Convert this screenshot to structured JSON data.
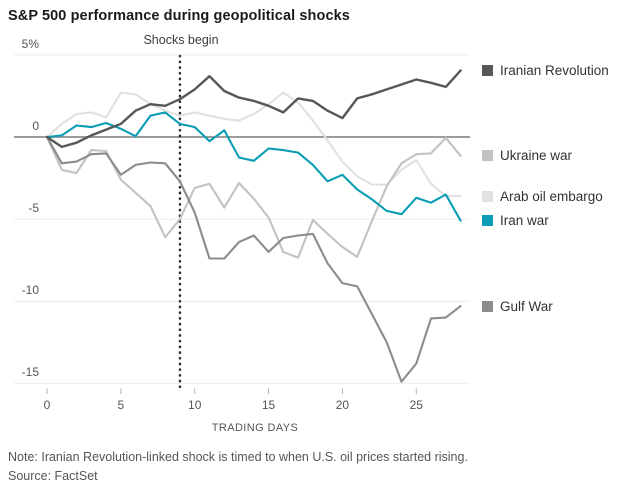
{
  "title": "S&P 500 performance during geopolitical shocks",
  "annotation": "Shocks begin",
  "xlabel": "TRADING DAYS",
  "note": "Note: Iranian Revolution-linked shock is timed to when U.S. oil prices started rising.",
  "source": "Source: FactSet",
  "chart_data": {
    "type": "line",
    "title": "S&P 500 performance during geopolitical shocks",
    "xlabel": "TRADING DAYS",
    "ylabel": "%",
    "x": [
      0,
      1,
      2,
      3,
      4,
      5,
      6,
      7,
      8,
      9,
      10,
      11,
      12,
      13,
      14,
      15,
      16,
      17,
      18,
      19,
      20,
      21,
      22,
      23,
      24,
      25,
      26,
      27,
      28
    ],
    "xticks": [
      0,
      5,
      10,
      15,
      20,
      25
    ],
    "yticks": [
      {
        "value": 5,
        "label": "5%"
      },
      {
        "value": 0,
        "label": "0"
      },
      {
        "value": -5,
        "label": "-5"
      },
      {
        "value": -10,
        "label": "-10"
      },
      {
        "value": -15,
        "label": "-15"
      }
    ],
    "ylim": [
      -15.6,
      5.2
    ],
    "xlim": [
      0,
      28
    ],
    "grid": true,
    "legend_position": "right",
    "shock_day": 9,
    "shock_label": "Shocks begin",
    "series": [
      {
        "name": "Iranian Revolution",
        "color": "#575757",
        "values": [
          0,
          -0.6,
          -0.35,
          0.1,
          0.45,
          0.8,
          1.6,
          2.0,
          1.9,
          2.3,
          2.9,
          3.7,
          2.8,
          2.4,
          2.2,
          1.9,
          1.5,
          2.35,
          2.2,
          1.6,
          1.15,
          2.35,
          2.6,
          2.9,
          3.2,
          3.5,
          3.3,
          3.05,
          4.05
        ]
      },
      {
        "name": "Ukraine war",
        "color": "#c2c2c2",
        "values": [
          0,
          -2.0,
          -2.2,
          -0.8,
          -0.85,
          -2.6,
          -3.4,
          -4.2,
          -6.1,
          -5.0,
          -3.1,
          -2.85,
          -4.3,
          -2.8,
          -3.75,
          -4.9,
          -7.0,
          -7.35,
          -5.05,
          -5.9,
          -6.7,
          -7.3,
          -5.1,
          -3.0,
          -1.6,
          -1.05,
          -1.0,
          -0.05,
          -1.15
        ]
      },
      {
        "name": "Arab oil embargo",
        "color": "#e1e1e1",
        "values": [
          0,
          0.8,
          1.4,
          1.5,
          1.2,
          2.7,
          2.6,
          2.0,
          1.6,
          1.3,
          1.5,
          1.3,
          1.1,
          1.0,
          1.4,
          2.0,
          2.7,
          2.1,
          1.0,
          -0.2,
          -1.5,
          -2.4,
          -2.9,
          -2.9,
          -2.0,
          -1.4,
          -2.85,
          -3.6,
          -3.6
        ]
      },
      {
        "name": "Iran war",
        "color": "#089db4",
        "values": [
          0,
          0.1,
          0.7,
          0.6,
          0.85,
          0.5,
          0.05,
          1.3,
          1.5,
          0.8,
          0.6,
          -0.25,
          0.4,
          -1.25,
          -1.45,
          -0.7,
          -0.8,
          -0.95,
          -1.7,
          -2.7,
          -2.3,
          -3.2,
          -3.8,
          -4.5,
          -4.7,
          -3.7,
          -4.0,
          -3.5,
          -5.1
        ]
      },
      {
        "name": "Gulf War",
        "color": "#8c8c8c",
        "values": [
          0,
          -1.6,
          -1.5,
          -1.05,
          -1.0,
          -2.3,
          -1.7,
          -1.55,
          -1.6,
          -2.7,
          -4.6,
          -7.4,
          -7.4,
          -6.4,
          -6.0,
          -7.0,
          -6.15,
          -6.0,
          -5.9,
          -7.7,
          -8.9,
          -9.1,
          -10.8,
          -12.5,
          -14.9,
          -13.8,
          -11.05,
          -11.0,
          -10.3
        ]
      }
    ]
  }
}
